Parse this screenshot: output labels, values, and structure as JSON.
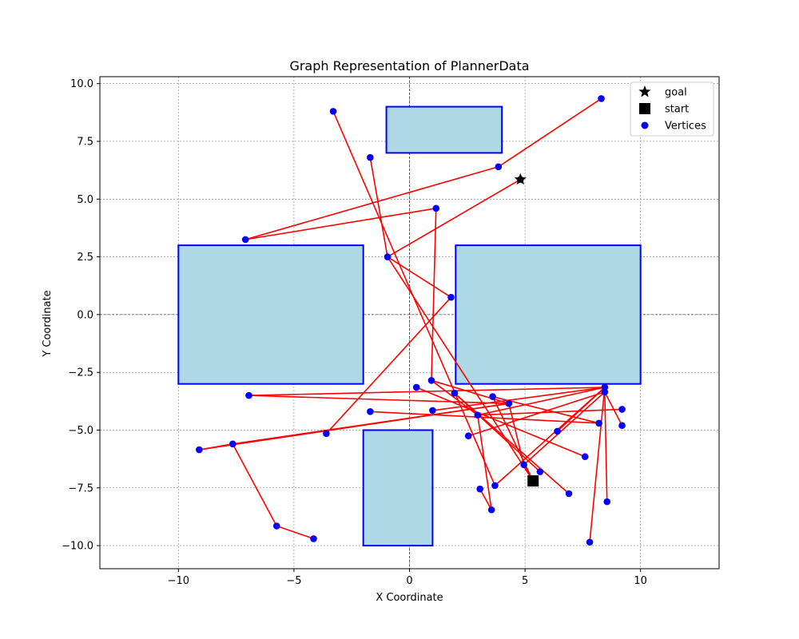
{
  "chart_data": {
    "type": "scatter",
    "title": "Graph Representation of PlannerData",
    "xlabel": "X Coordinate",
    "ylabel": "Y Coordinate",
    "xlim": [
      -13.4,
      13.4
    ],
    "ylim": [
      -11,
      10.3
    ],
    "xticks": [
      -10,
      -5,
      0,
      5,
      10
    ],
    "xtick_labels": [
      "−10",
      "−5",
      "0",
      "5",
      "10"
    ],
    "yticks": [
      10,
      7.5,
      5,
      2.5,
      0,
      -2.5,
      -5,
      -7.5,
      -10
    ],
    "ytick_labels": [
      "10.0",
      "7.5",
      "5.0",
      "2.5",
      "0.0",
      "−2.5",
      "−5.0",
      "−7.5",
      "−10.0"
    ],
    "grid": true,
    "legend_position": "top-right",
    "legend": [
      {
        "label": "goal",
        "marker": "star"
      },
      {
        "label": "start",
        "marker": "square"
      },
      {
        "label": "Vertices",
        "marker": "circle"
      }
    ],
    "colors": {
      "obstacle_fill": "#add8e6",
      "obstacle_edge": "#0000ff",
      "vertex": "#0000ff",
      "edge": "#ff0000",
      "marker": "#000000"
    },
    "obstacles": [
      {
        "x": -1,
        "y": 7,
        "width": 5,
        "height": 2
      },
      {
        "x": -10,
        "y": -3,
        "width": 8,
        "height": 6
      },
      {
        "x": 2,
        "y": -3,
        "width": 8,
        "height": 6
      },
      {
        "x": -2,
        "y": -10,
        "width": 3,
        "height": 5
      }
    ],
    "goal": {
      "x": 4.8,
      "y": 5.85
    },
    "start": {
      "x": 5.35,
      "y": -7.2
    },
    "vertices": [
      {
        "x": -3.3,
        "y": 8.8
      },
      {
        "x": -1.7,
        "y": 6.8
      },
      {
        "x": 8.3,
        "y": 9.35
      },
      {
        "x": 3.85,
        "y": 6.4
      },
      {
        "x": 4.8,
        "y": 5.85
      },
      {
        "x": 1.15,
        "y": 4.6
      },
      {
        "x": -7.1,
        "y": 3.25
      },
      {
        "x": -0.95,
        "y": 2.5
      },
      {
        "x": 1.8,
        "y": 0.75
      },
      {
        "x": 8.45,
        "y": -3.15
      },
      {
        "x": 8.45,
        "y": -3.35
      },
      {
        "x": 0.3,
        "y": -3.15
      },
      {
        "x": 0.95,
        "y": -2.85
      },
      {
        "x": 1.95,
        "y": -3.4
      },
      {
        "x": 3.6,
        "y": -3.55
      },
      {
        "x": 4.3,
        "y": -3.85
      },
      {
        "x": -6.95,
        "y": -3.5
      },
      {
        "x": 9.2,
        "y": -4.1
      },
      {
        "x": 1.0,
        "y": -4.15
      },
      {
        "x": -1.7,
        "y": -4.2
      },
      {
        "x": 2.95,
        "y": -4.35
      },
      {
        "x": 8.2,
        "y": -4.7
      },
      {
        "x": 9.2,
        "y": -4.8
      },
      {
        "x": 6.4,
        "y": -5.05
      },
      {
        "x": -3.6,
        "y": -5.15
      },
      {
        "x": 2.55,
        "y": -5.25
      },
      {
        "x": -7.65,
        "y": -5.6
      },
      {
        "x": -9.1,
        "y": -5.85
      },
      {
        "x": 7.6,
        "y": -6.15
      },
      {
        "x": 4.95,
        "y": -6.5
      },
      {
        "x": 5.65,
        "y": -6.8
      },
      {
        "x": 5.35,
        "y": -7.2
      },
      {
        "x": 3.7,
        "y": -7.4
      },
      {
        "x": 3.05,
        "y": -7.55
      },
      {
        "x": 6.9,
        "y": -7.75
      },
      {
        "x": 8.55,
        "y": -8.1
      },
      {
        "x": 3.55,
        "y": -8.45
      },
      {
        "x": -5.75,
        "y": -9.15
      },
      {
        "x": -4.15,
        "y": -9.7
      },
      {
        "x": 7.8,
        "y": -9.85
      }
    ],
    "edges": [
      [
        [
          -3.3,
          8.8
        ],
        [
          3.7,
          -7.4
        ]
      ],
      [
        [
          -1.7,
          6.8
        ],
        [
          -0.95,
          2.5
        ]
      ],
      [
        [
          -0.95,
          2.5
        ],
        [
          1.8,
          0.75
        ]
      ],
      [
        [
          1.8,
          0.75
        ],
        [
          -3.6,
          -5.15
        ]
      ],
      [
        [
          8.3,
          9.35
        ],
        [
          3.85,
          6.4
        ]
      ],
      [
        [
          3.85,
          6.4
        ],
        [
          -7.1,
          3.25
        ]
      ],
      [
        [
          -7.1,
          3.25
        ],
        [
          1.15,
          4.6
        ]
      ],
      [
        [
          1.15,
          4.6
        ],
        [
          0.95,
          -2.85
        ]
      ],
      [
        [
          4.8,
          5.85
        ],
        [
          -0.95,
          2.5
        ]
      ],
      [
        [
          -0.95,
          2.5
        ],
        [
          5.35,
          -7.2
        ]
      ],
      [
        [
          0.95,
          -2.85
        ],
        [
          4.3,
          -3.85
        ]
      ],
      [
        [
          0.95,
          -2.85
        ],
        [
          2.95,
          -4.35
        ]
      ],
      [
        [
          1.95,
          -3.4
        ],
        [
          5.65,
          -6.8
        ]
      ],
      [
        [
          1.95,
          -3.4
        ],
        [
          6.9,
          -7.75
        ]
      ],
      [
        [
          0.3,
          -3.15
        ],
        [
          7.6,
          -6.15
        ]
      ],
      [
        [
          -6.95,
          -3.5
        ],
        [
          8.45,
          -3.15
        ]
      ],
      [
        [
          -6.95,
          -3.5
        ],
        [
          4.3,
          -3.85
        ]
      ],
      [
        [
          8.45,
          -3.15
        ],
        [
          1.0,
          -4.15
        ]
      ],
      [
        [
          8.45,
          -3.15
        ],
        [
          2.95,
          -4.35
        ]
      ],
      [
        [
          8.45,
          -3.15
        ],
        [
          6.4,
          -5.05
        ]
      ],
      [
        [
          8.45,
          -3.15
        ],
        [
          3.7,
          -7.4
        ]
      ],
      [
        [
          8.45,
          -3.15
        ],
        [
          7.8,
          -9.85
        ]
      ],
      [
        [
          8.45,
          -3.35
        ],
        [
          8.55,
          -8.1
        ]
      ],
      [
        [
          8.45,
          -3.35
        ],
        [
          9.2,
          -4.8
        ]
      ],
      [
        [
          8.45,
          -3.35
        ],
        [
          4.95,
          -6.5
        ]
      ],
      [
        [
          8.45,
          -3.35
        ],
        [
          2.55,
          -5.25
        ]
      ],
      [
        [
          9.2,
          -4.1
        ],
        [
          2.95,
          -4.35
        ]
      ],
      [
        [
          8.2,
          -4.7
        ],
        [
          3.6,
          -3.55
        ]
      ],
      [
        [
          8.2,
          -4.7
        ],
        [
          -1.7,
          -4.2
        ]
      ],
      [
        [
          3.6,
          -3.55
        ],
        [
          5.35,
          -7.2
        ]
      ],
      [
        [
          2.95,
          -4.35
        ],
        [
          3.55,
          -8.45
        ]
      ],
      [
        [
          3.55,
          -8.45
        ],
        [
          3.05,
          -7.55
        ]
      ],
      [
        [
          -9.1,
          -5.85
        ],
        [
          -7.65,
          -5.6
        ]
      ],
      [
        [
          -9.1,
          -5.85
        ],
        [
          4.3,
          -3.85
        ]
      ],
      [
        [
          -7.65,
          -5.6
        ],
        [
          4.3,
          -3.85
        ]
      ],
      [
        [
          -7.65,
          -5.6
        ],
        [
          -5.75,
          -9.15
        ]
      ],
      [
        [
          -5.75,
          -9.15
        ],
        [
          -4.15,
          -9.7
        ]
      ],
      [
        [
          4.3,
          -3.85
        ],
        [
          4.95,
          -6.5
        ]
      ],
      [
        [
          4.95,
          -6.5
        ],
        [
          5.35,
          -7.2
        ]
      ]
    ]
  }
}
